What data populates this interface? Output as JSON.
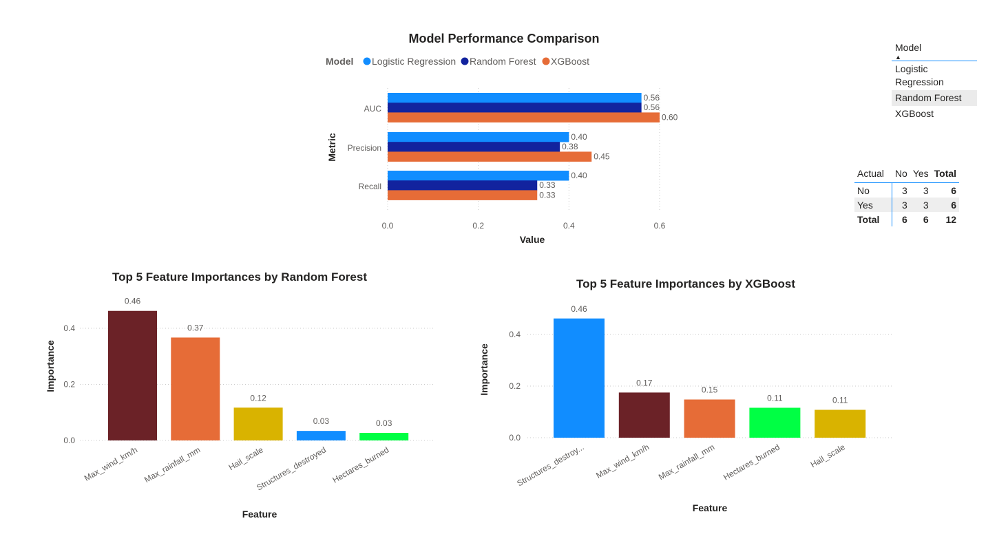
{
  "colors": {
    "logistic_regression": "#118DFF",
    "random_forest": "#12239E",
    "xgboost": "#E66C37",
    "maroon": "#6B2227",
    "gold": "#D9B300",
    "green": "#00FF44",
    "blue": "#118DFF",
    "orange": "#E66C37",
    "accent": "#118DFF"
  },
  "chart_data": [
    {
      "type": "bar",
      "orientation": "horizontal",
      "title": "Model Performance Comparison",
      "legend_title": "Model",
      "legend_position": "top",
      "categories": [
        "AUC",
        "Precision",
        "Recall"
      ],
      "series": [
        {
          "name": "Logistic Regression",
          "color": "#118DFF",
          "values": [
            0.56,
            0.4,
            0.4
          ],
          "labels": [
            "0.56",
            "0.40",
            "0.40"
          ]
        },
        {
          "name": "Random Forest",
          "color": "#12239E",
          "values": [
            0.56,
            0.38,
            0.33
          ],
          "labels": [
            "0.56",
            "0.38",
            "0.33"
          ]
        },
        {
          "name": "XGBoost",
          "color": "#E66C37",
          "values": [
            0.6,
            0.45,
            0.33
          ],
          "labels": [
            "0.60",
            "0.45",
            "0.33"
          ]
        }
      ],
      "xlabel": "Value",
      "ylabel": "Metric",
      "xlim": [
        0,
        0.6
      ],
      "xticks": [
        "0.0",
        "0.2",
        "0.4",
        "0.6"
      ],
      "grid": true
    },
    {
      "type": "bar",
      "title": "Top 5 Feature Importances by Random Forest",
      "categories": [
        "Max_wind_km/h",
        "Max_rainfall_mm",
        "Hail_scale",
        "Structures_destroyed",
        "Hectares_burned"
      ],
      "values": [
        0.46,
        0.37,
        0.12,
        0.03,
        0.03
      ],
      "plot_values": [
        0.462,
        0.367,
        0.117,
        0.034,
        0.027
      ],
      "labels": [
        "0.46",
        "0.37",
        "0.12",
        "0.03",
        "0.03"
      ],
      "colors": [
        "#6B2227",
        "#E66C37",
        "#D9B300",
        "#118DFF",
        "#00FF44"
      ],
      "xlabel": "Feature",
      "ylabel": "Importance",
      "ylim": [
        0,
        0.5
      ],
      "yticks": [
        "0.0",
        "0.2",
        "0.4"
      ],
      "grid": true
    },
    {
      "type": "bar",
      "title": "Top 5 Feature Importances by XGBoost",
      "categories": [
        "Structures_destroy...",
        "Max_wind_km/h",
        "Max_rainfall_mm",
        "Hectares_burned",
        "Hail_scale"
      ],
      "values": [
        0.46,
        0.17,
        0.15,
        0.11,
        0.11
      ],
      "plot_values": [
        0.462,
        0.175,
        0.148,
        0.116,
        0.108
      ],
      "labels": [
        "0.46",
        "0.17",
        "0.15",
        "0.11",
        "0.11"
      ],
      "colors": [
        "#118DFF",
        "#6B2227",
        "#E66C37",
        "#00FF44",
        "#D9B300"
      ],
      "xlabel": "Feature",
      "ylabel": "Importance",
      "ylim": [
        0,
        0.5
      ],
      "yticks": [
        "0.0",
        "0.2",
        "0.4"
      ],
      "grid": true
    }
  ],
  "slicer": {
    "header": "Model",
    "sort_glyph": "▲",
    "items": [
      {
        "label": "Logistic Regression",
        "lines": [
          "Logistic",
          "Regression"
        ],
        "selected": false
      },
      {
        "label": "Random Forest",
        "lines": [
          "Random Forest"
        ],
        "selected": true
      },
      {
        "label": "XGBoost",
        "lines": [
          "XGBoost"
        ],
        "selected": false
      }
    ]
  },
  "matrix": {
    "corner": "Actual",
    "columns": [
      "No",
      "Yes",
      "Total"
    ],
    "rows": [
      {
        "label": "No",
        "values": [
          "3",
          "3",
          "6"
        ]
      },
      {
        "label": "Yes",
        "values": [
          "3",
          "3",
          "6"
        ]
      },
      {
        "label": "Total",
        "values": [
          "6",
          "6",
          "12"
        ]
      }
    ]
  }
}
